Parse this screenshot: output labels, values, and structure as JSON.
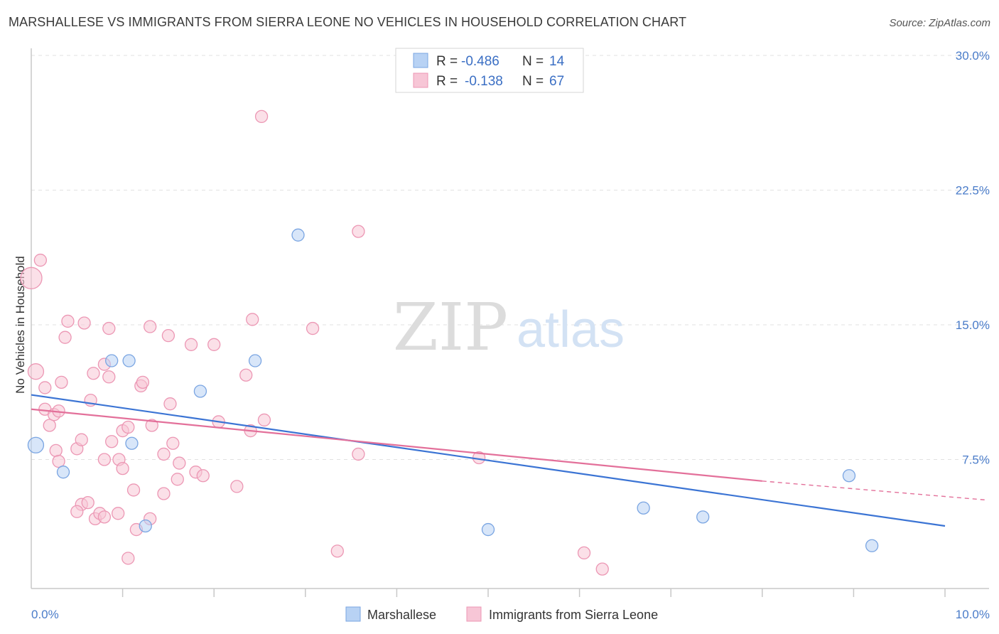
{
  "header": {
    "title": "MARSHALLESE VS IMMIGRANTS FROM SIERRA LEONE NO VEHICLES IN HOUSEHOLD CORRELATION CHART",
    "source": "Source: ZipAtlas.com"
  },
  "watermark": {
    "zip": "ZIP",
    "atlas": "atlas"
  },
  "colors": {
    "marshallese_fill": "#b8d2f4",
    "marshallese_stroke": "#7aa5e2",
    "marshallese_line": "#3b74d4",
    "sierra_fill": "#f7c6d6",
    "sierra_stroke": "#ec97b4",
    "sierra_line": "#e3709a",
    "axis_label": "#4a7cc9"
  },
  "legend": {
    "rows": [
      {
        "r_label": "R =",
        "r_value": "-0.486",
        "n_label": "N =",
        "n_value": "14"
      },
      {
        "r_label": "R =",
        "r_value": "-0.138",
        "n_label": "N =",
        "n_value": "67"
      }
    ]
  },
  "bottom_legend": {
    "items": [
      {
        "label": "Marshallese"
      },
      {
        "label": "Immigrants from Sierra Leone"
      }
    ]
  },
  "chart_data": {
    "type": "scatter",
    "title": "MARSHALLESE VS IMMIGRANTS FROM SIERRA LEONE NO VEHICLES IN HOUSEHOLD CORRELATION CHART",
    "xlabel": "",
    "ylabel": "No Vehicles in Household",
    "xlim": [
      0,
      10
    ],
    "ylim": [
      0,
      30
    ],
    "x_tick_labels": [
      "0.0%",
      "10.0%"
    ],
    "y_ticks": [
      {
        "value": 7.5,
        "label": "7.5%"
      },
      {
        "value": 15,
        "label": "15.0%"
      },
      {
        "value": 22.5,
        "label": "22.5%"
      },
      {
        "value": 30,
        "label": "30.0%"
      }
    ],
    "grid": true,
    "legend_position": "top-center",
    "series": [
      {
        "name": "Marshallese",
        "points": [
          [
            0.05,
            8.3
          ],
          [
            0.35,
            6.8
          ],
          [
            0.88,
            13.0
          ],
          [
            1.07,
            13.0
          ],
          [
            1.1,
            8.4
          ],
          [
            1.25,
            3.8
          ],
          [
            1.85,
            11.3
          ],
          [
            2.45,
            13.0
          ],
          [
            2.92,
            20.0
          ],
          [
            5.0,
            3.6
          ],
          [
            6.7,
            4.8
          ],
          [
            7.35,
            4.3
          ],
          [
            8.95,
            6.6
          ],
          [
            9.2,
            2.7
          ]
        ],
        "trend": {
          "x": [
            0,
            10
          ],
          "y": [
            11.1,
            3.8
          ]
        }
      },
      {
        "name": "Immigrants from Sierra Leone",
        "points": [
          [
            0.0,
            17.6
          ],
          [
            0.1,
            18.6
          ],
          [
            0.05,
            12.4
          ],
          [
            0.15,
            11.5
          ],
          [
            0.15,
            10.3
          ],
          [
            0.2,
            9.4
          ],
          [
            0.25,
            10.0
          ],
          [
            0.3,
            10.2
          ],
          [
            0.27,
            8.0
          ],
          [
            0.3,
            7.4
          ],
          [
            0.33,
            11.8
          ],
          [
            0.37,
            14.3
          ],
          [
            0.4,
            15.2
          ],
          [
            0.55,
            5.0
          ],
          [
            0.5,
            4.6
          ],
          [
            0.62,
            5.1
          ],
          [
            0.5,
            8.1
          ],
          [
            0.55,
            8.6
          ],
          [
            0.58,
            15.1
          ],
          [
            0.65,
            10.8
          ],
          [
            0.7,
            4.2
          ],
          [
            0.68,
            12.3
          ],
          [
            0.75,
            4.5
          ],
          [
            0.8,
            4.3
          ],
          [
            0.85,
            12.1
          ],
          [
            0.8,
            12.8
          ],
          [
            0.8,
            7.5
          ],
          [
            0.85,
            14.8
          ],
          [
            0.88,
            8.5
          ],
          [
            0.95,
            4.5
          ],
          [
            0.96,
            7.5
          ],
          [
            1.0,
            9.1
          ],
          [
            1.0,
            7.0
          ],
          [
            1.06,
            9.3
          ],
          [
            1.06,
            2.0
          ],
          [
            1.12,
            5.8
          ],
          [
            1.15,
            3.6
          ],
          [
            1.2,
            11.6
          ],
          [
            1.22,
            11.8
          ],
          [
            1.3,
            4.2
          ],
          [
            1.3,
            14.9
          ],
          [
            1.32,
            9.4
          ],
          [
            1.45,
            5.6
          ],
          [
            1.45,
            7.8
          ],
          [
            1.5,
            14.4
          ],
          [
            1.52,
            10.6
          ],
          [
            1.55,
            8.4
          ],
          [
            1.6,
            6.4
          ],
          [
            1.62,
            7.3
          ],
          [
            1.75,
            13.9
          ],
          [
            1.8,
            6.8
          ],
          [
            1.88,
            6.6
          ],
          [
            2.0,
            13.9
          ],
          [
            2.05,
            9.6
          ],
          [
            2.25,
            6.0
          ],
          [
            2.35,
            12.2
          ],
          [
            2.4,
            9.1
          ],
          [
            2.42,
            15.3
          ],
          [
            2.55,
            9.7
          ],
          [
            2.52,
            26.6
          ],
          [
            3.08,
            14.8
          ],
          [
            3.35,
            2.4
          ],
          [
            3.58,
            20.2
          ],
          [
            3.58,
            7.8
          ],
          [
            4.9,
            7.6
          ],
          [
            6.05,
            2.3
          ],
          [
            6.25,
            1.4
          ]
        ],
        "trend": {
          "x": [
            0,
            8.0
          ],
          "y": [
            10.3,
            6.3
          ]
        },
        "trend_dashed": {
          "x": [
            8.0,
            10.0
          ],
          "y": [
            6.3,
            5.2
          ]
        }
      }
    ]
  }
}
